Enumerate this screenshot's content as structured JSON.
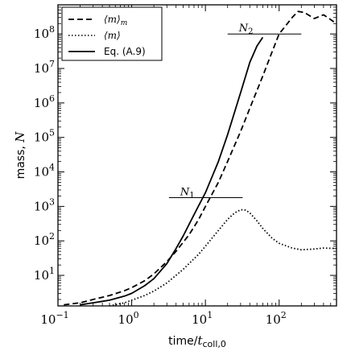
{
  "chart_data": {
    "type": "line",
    "xlabel_main": "time/",
    "xlabel_var": "t",
    "xlabel_sub": "coll,0",
    "ylabel_main": "mass, ",
    "ylabel_var": "N",
    "xscale": "log",
    "yscale": "log",
    "xlim": [
      0.1,
      600
    ],
    "ylim": [
      1.3,
      700000000
    ],
    "grid": false,
    "legend_position": "top-left",
    "x_ticks": [
      {
        "label_base": "10",
        "label_exp": "−1",
        "value": 0.1
      },
      {
        "label_base": "10",
        "label_exp": "0",
        "value": 1
      },
      {
        "label_base": "10",
        "label_exp": "1",
        "value": 10
      },
      {
        "label_base": "10",
        "label_exp": "2",
        "value": 100
      }
    ],
    "y_ticks": [
      {
        "label_base": "10",
        "label_exp": "1",
        "value": 10
      },
      {
        "label_base": "10",
        "label_exp": "2",
        "value": 100
      },
      {
        "label_base": "10",
        "label_exp": "3",
        "value": 1000
      },
      {
        "label_base": "10",
        "label_exp": "4",
        "value": 10000
      },
      {
        "label_base": "10",
        "label_exp": "5",
        "value": 100000
      },
      {
        "label_base": "10",
        "label_exp": "6",
        "value": 1000000
      },
      {
        "label_base": "10",
        "label_exp": "7",
        "value": 10000000
      },
      {
        "label_base": "10",
        "label_exp": "8",
        "value": 100000000
      }
    ],
    "series": [
      {
        "name_text": "⟨m⟩",
        "name_sub": "m",
        "style": "dashed",
        "x": [
          0.12,
          0.2,
          0.3,
          0.5,
          0.8,
          1.0,
          1.5,
          2.0,
          3.0,
          4.0,
          6.0,
          8.0,
          10,
          15,
          20,
          30,
          40,
          60,
          80,
          100,
          150,
          180,
          220,
          300,
          400,
          600
        ],
        "y": [
          1.4,
          1.6,
          2.0,
          2.6,
          3.6,
          4.4,
          7,
          11,
          25,
          50,
          150,
          400,
          1000,
          5000,
          20000,
          150000,
          700000,
          6000000,
          30000000,
          100000000,
          300000000,
          450000000,
          420000000,
          280000000,
          360000000,
          200000000
        ]
      },
      {
        "name_text": "⟨m⟩",
        "style": "dotted",
        "x": [
          0.5,
          0.8,
          1.0,
          1.5,
          2.0,
          3.0,
          5.0,
          8.0,
          10,
          15,
          20,
          25,
          30,
          35,
          40,
          50,
          60,
          80,
          100,
          150,
          200,
          300,
          400,
          600
        ],
        "y": [
          1.3,
          1.6,
          1.9,
          2.6,
          3.5,
          6,
          15,
          40,
          70,
          200,
          420,
          650,
          800,
          780,
          650,
          380,
          230,
          120,
          85,
          62,
          55,
          58,
          62,
          60
        ]
      },
      {
        "name_text": "Eq. (A.9)",
        "style": "solid",
        "x": [
          0.2,
          0.3,
          0.5,
          0.8,
          1.0,
          1.5,
          2.0,
          3.0,
          4.0,
          5.0,
          6.0,
          8.0,
          10,
          15,
          20,
          30,
          40,
          50,
          60
        ],
        "y": [
          1.4,
          1.6,
          1.9,
          2.5,
          3.0,
          5.0,
          8.0,
          22,
          60,
          140,
          300,
          1000,
          2500,
          20000,
          120000,
          2000000,
          15000000,
          45000000,
          80000000
        ]
      }
    ],
    "annotations": [
      {
        "label": "N",
        "sub": "1",
        "x1": 3.2,
        "x2": 32,
        "y": 1800
      },
      {
        "label": "N",
        "sub": "2",
        "x1": 20,
        "x2": 200,
        "y": 100000000
      }
    ]
  }
}
